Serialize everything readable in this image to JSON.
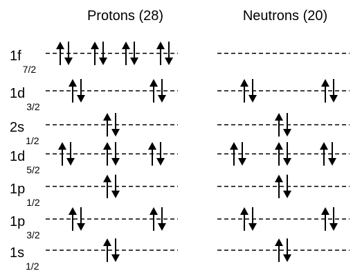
{
  "columns": [
    {
      "key": "protons",
      "title": "Protons (28)",
      "occupancy": [
        "8",
        "4",
        "2",
        "6",
        "2",
        "4",
        "2"
      ]
    },
    {
      "key": "neutrons",
      "title": "Neutrons (20)",
      "occupancy": [
        "0",
        "4",
        "2",
        "6",
        "2",
        "4",
        "2"
      ]
    }
  ],
  "levels": [
    {
      "name": "1f",
      "j": "7/2",
      "degeneracy": 8
    },
    {
      "name": "1d",
      "j": "3/2",
      "degeneracy": 4
    },
    {
      "name": "2s",
      "j": "1/2",
      "degeneracy": 2
    },
    {
      "name": "1d",
      "j": "5/2",
      "degeneracy": 6
    },
    {
      "name": "1p",
      "j": "1/2",
      "degeneracy": 2
    },
    {
      "name": "1p",
      "j": "3/2",
      "degeneracy": 4
    },
    {
      "name": "1s",
      "j": "1/2",
      "degeneracy": 2
    }
  ],
  "colors": {
    "line": "#000000",
    "text": "#000000",
    "arrow": "#000000"
  }
}
